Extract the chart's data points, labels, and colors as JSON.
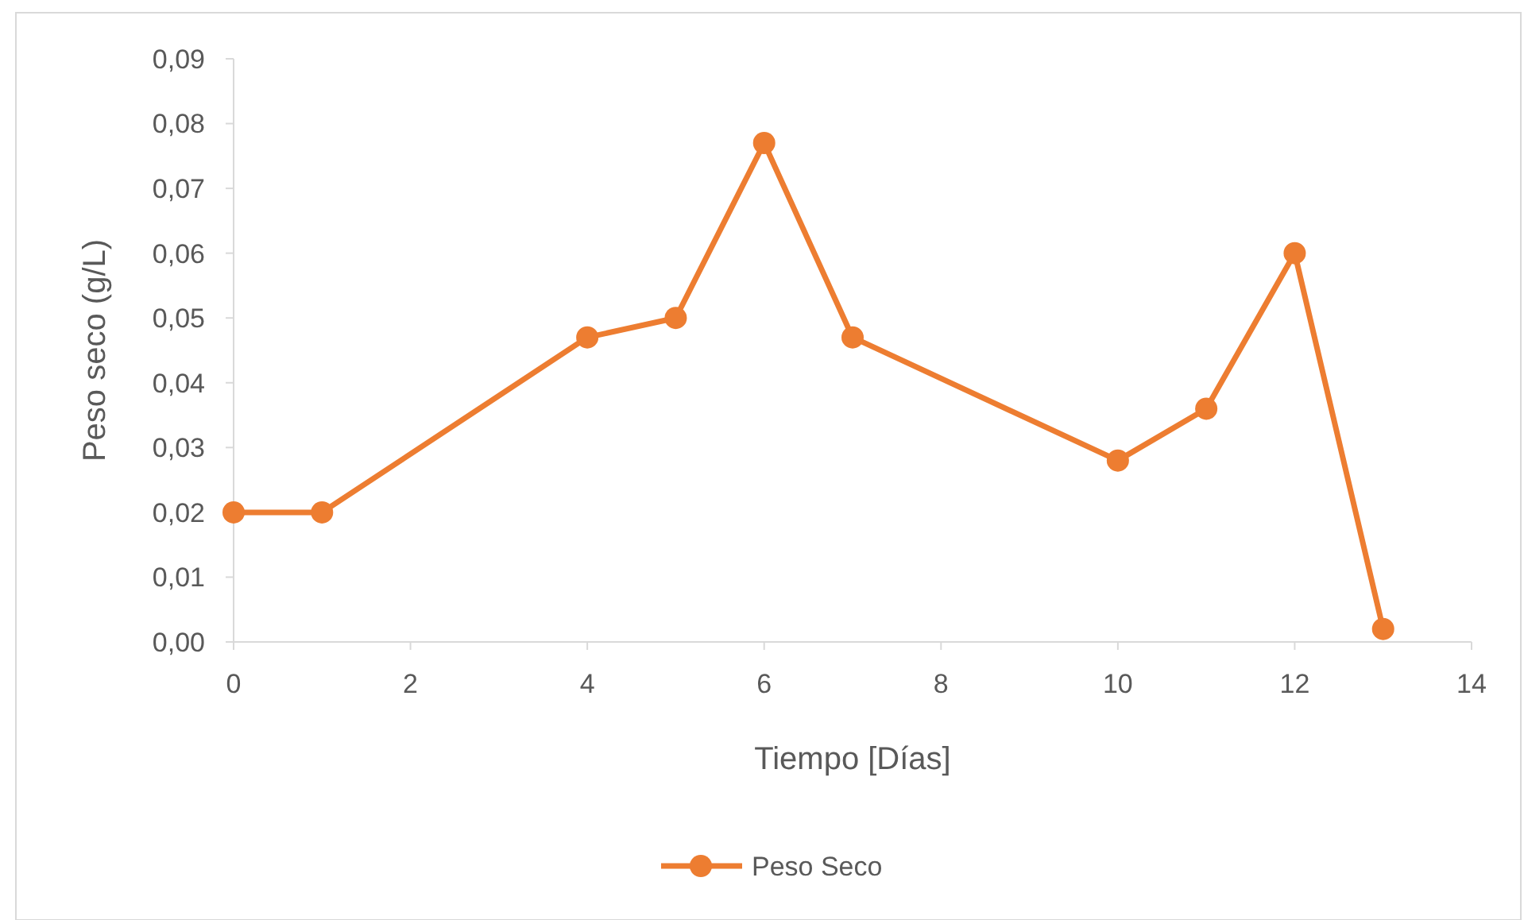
{
  "chart_data": {
    "type": "line",
    "xlabel": "Tiempo [Días]",
    "ylabel": "Peso seco (g/L)",
    "x": [
      0,
      1,
      4,
      5,
      6,
      7,
      10,
      11,
      12,
      13
    ],
    "series": [
      {
        "name": "Peso Seco",
        "color": "#ed7d31",
        "values": [
          0.02,
          0.02,
          0.047,
          0.05,
          0.077,
          0.047,
          0.028,
          0.036,
          0.06,
          0.002
        ]
      }
    ],
    "xlim": [
      0,
      14
    ],
    "xticks": [
      0,
      2,
      4,
      6,
      8,
      10,
      12,
      14
    ],
    "ylim": [
      0,
      0.09
    ],
    "yticks": [
      {
        "value": 0,
        "label": "0,00"
      },
      {
        "value": 0.01,
        "label": "0,01"
      },
      {
        "value": 0.02,
        "label": "0,02"
      },
      {
        "value": 0.03,
        "label": "0,03"
      },
      {
        "value": 0.04,
        "label": "0,04"
      },
      {
        "value": 0.05,
        "label": "0,05"
      },
      {
        "value": 0.06,
        "label": "0,06"
      },
      {
        "value": 0.07,
        "label": "0,07"
      },
      {
        "value": 0.08,
        "label": "0,08"
      },
      {
        "value": 0.09,
        "label": "0,09"
      }
    ],
    "grid": false,
    "legend": "bottom",
    "marker": "circle",
    "line_style": "solid"
  }
}
